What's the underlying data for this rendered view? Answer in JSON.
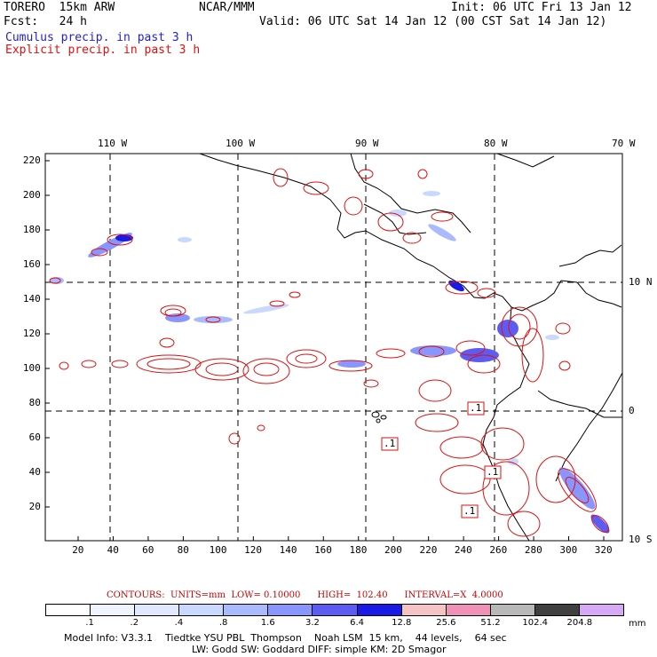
{
  "header": {
    "model": "TORERO  15km ARW",
    "org": "NCAR/MMM",
    "init": "Init: 06 UTC Fri 13 Jan 12",
    "fcst": "Fcst:   24 h",
    "valid": "Valid: 06 UTC Sat 14 Jan 12 (00 CST Sat 14 Jan 12)",
    "cumulus": "Cumulus precip. in past 3 h",
    "explicit": "Explicit precip. in past 3 h",
    "cumulus_color": "#2222cc",
    "explicit_color": "#dd1111"
  },
  "axes": {
    "lon_top": [
      "110 W",
      "100 W",
      "90 W",
      "80 W",
      "70 W"
    ],
    "lat_right": [
      "10 N",
      "0",
      "10 S"
    ],
    "x_ticks": [
      "20",
      "40",
      "60",
      "80",
      "100",
      "120",
      "140",
      "160",
      "180",
      "200",
      "220",
      "240",
      "260",
      "280",
      "300",
      "320"
    ],
    "y_ticks": [
      "220",
      "200",
      "180",
      "160",
      "140",
      "120",
      "100",
      "80",
      "60",
      "40",
      "20"
    ]
  },
  "contour_labels": [
    ".1",
    ".1",
    ".1",
    ".1"
  ],
  "contour_info": {
    "text": "CONTOURS:  UNITS=mm  LOW= 0.10000      HIGH=  102.40      INTERVAL=X  4.0000",
    "color": "#cc0000"
  },
  "colorbar": {
    "colors": [
      "#ffffff",
      "#f0f4ff",
      "#dfe8ff",
      "#c8d8ff",
      "#aabaff",
      "#8a96ff",
      "#5c5cf2",
      "#1a1ae6",
      "#f4c4c4",
      "#f092b8",
      "#b8b8b8",
      "#404040",
      "#d7a8f5"
    ],
    "labels": [
      ".1",
      ".2",
      ".4",
      ".8",
      "1.6",
      "3.2",
      "6.4",
      "12.8",
      "25.6",
      "51.2",
      "102.4",
      "204.8"
    ],
    "unit": "mm"
  },
  "footer": {
    "line1": "Model Info: V3.3.1    Tiedtke YSU PBL  Thompson    Noah LSM  15 km,    44 levels,    64 sec",
    "line2": "LW: Godd SW: Goddard DIFF: simple KM: 2D Smagor"
  }
}
